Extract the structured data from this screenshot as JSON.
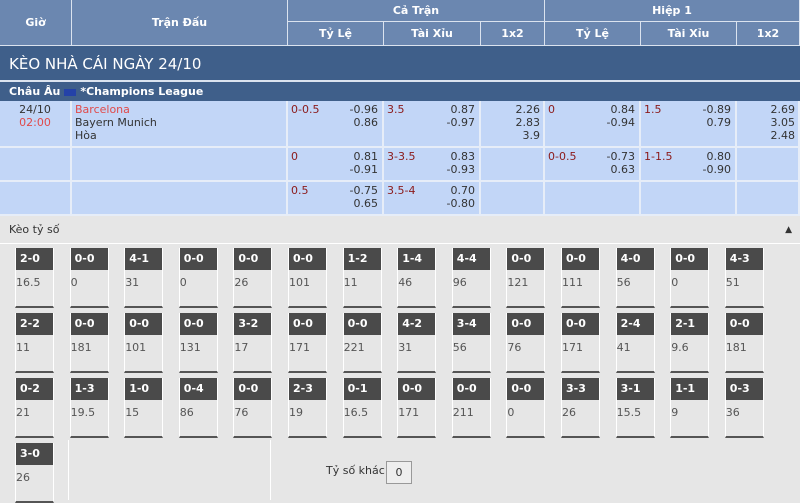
{
  "header": {
    "gio": "Giờ",
    "tran_dau": "Trận Đấu",
    "ca_tran": "Cả Trận",
    "hiep1": "Hiệp 1",
    "ty_le": "Tỷ Lệ",
    "tai_xiu": "Tài Xỉu",
    "x12": "1x2"
  },
  "title": "KÈO NHÀ CÁI NGÀY 24/10",
  "league": {
    "region": "Châu Âu",
    "name": "*Champions League"
  },
  "match": {
    "date": "24/10",
    "time": "02:00",
    "home": "Barcelona",
    "away": "Bayern Munich",
    "draw": "Hòa"
  },
  "rows": [
    {
      "ft_hdp": "0-0.5",
      "ft_hdp_v": [
        "-0.96",
        "0.86"
      ],
      "ft_ou": "3.5",
      "ft_ou_v": [
        "0.87",
        "-0.97"
      ],
      "ft_1x2": [
        "2.26",
        "2.83",
        "3.9"
      ],
      "h1_hdp": "0",
      "h1_hdp_v": [
        "0.84",
        "-0.94"
      ],
      "h1_ou": "1.5",
      "h1_ou_v": [
        "-0.89",
        "0.79"
      ],
      "h1_1x2": [
        "2.69",
        "3.05",
        "2.48"
      ]
    },
    {
      "ft_hdp": "0",
      "ft_hdp_v": [
        "0.81",
        "-0.91"
      ],
      "ft_ou": "3-3.5",
      "ft_ou_v": [
        "0.83",
        "-0.93"
      ],
      "ft_1x2": [],
      "h1_hdp": "0-0.5",
      "h1_hdp_v": [
        "-0.73",
        "0.63"
      ],
      "h1_ou": "1-1.5",
      "h1_ou_v": [
        "0.80",
        "-0.90"
      ],
      "h1_1x2": []
    },
    {
      "ft_hdp": "0.5",
      "ft_hdp_v": [
        "-0.75",
        "0.65"
      ],
      "ft_ou": "3.5-4",
      "ft_ou_v": [
        "0.70",
        "-0.80"
      ],
      "ft_1x2": [],
      "h1_hdp": "",
      "h1_hdp_v": [],
      "h1_ou": "",
      "h1_ou_v": [],
      "h1_1x2": []
    }
  ],
  "scores_section": {
    "label": "Kèo tỷ số",
    "toggle_icon": "caret-up-icon",
    "other_label": "Tỷ số khác",
    "other_value": "0"
  },
  "scores": [
    [
      [
        "2-0",
        "16.5"
      ],
      [
        "0-0",
        "0"
      ],
      [
        "4-1",
        "31"
      ],
      [
        "0-0",
        "0"
      ],
      [
        "0-0",
        "26"
      ],
      [
        "0-0",
        "101"
      ],
      [
        "1-2",
        "11"
      ],
      [
        "1-4",
        "46"
      ],
      [
        "4-4",
        "96"
      ],
      [
        "0-0",
        "121"
      ],
      [
        "0-0",
        "111"
      ],
      [
        "4-0",
        "56"
      ],
      [
        "0-0",
        "0"
      ],
      [
        "4-3",
        "51"
      ]
    ],
    [
      [
        "2-2",
        "11"
      ],
      [
        "0-0",
        "181"
      ],
      [
        "0-0",
        "101"
      ],
      [
        "0-0",
        "131"
      ],
      [
        "3-2",
        "17"
      ],
      [
        "0-0",
        "171"
      ],
      [
        "0-0",
        "221"
      ],
      [
        "4-2",
        "31"
      ],
      [
        "3-4",
        "56"
      ],
      [
        "0-0",
        "76"
      ],
      [
        "0-0",
        "171"
      ],
      [
        "2-4",
        "41"
      ],
      [
        "2-1",
        "9.6"
      ],
      [
        "0-0",
        "181"
      ]
    ],
    [
      [
        "0-2",
        "21"
      ],
      [
        "1-3",
        "19.5"
      ],
      [
        "1-0",
        "15"
      ],
      [
        "0-4",
        "86"
      ],
      [
        "0-0",
        "76"
      ],
      [
        "2-3",
        "19"
      ],
      [
        "0-1",
        "16.5"
      ],
      [
        "0-0",
        "171"
      ],
      [
        "0-0",
        "211"
      ],
      [
        "0-0",
        "0"
      ],
      [
        "3-3",
        "26"
      ],
      [
        "3-1",
        "15.5"
      ],
      [
        "1-1",
        "9"
      ],
      [
        "0-3",
        "36"
      ]
    ],
    [
      [
        "3-0",
        "26"
      ]
    ]
  ]
}
